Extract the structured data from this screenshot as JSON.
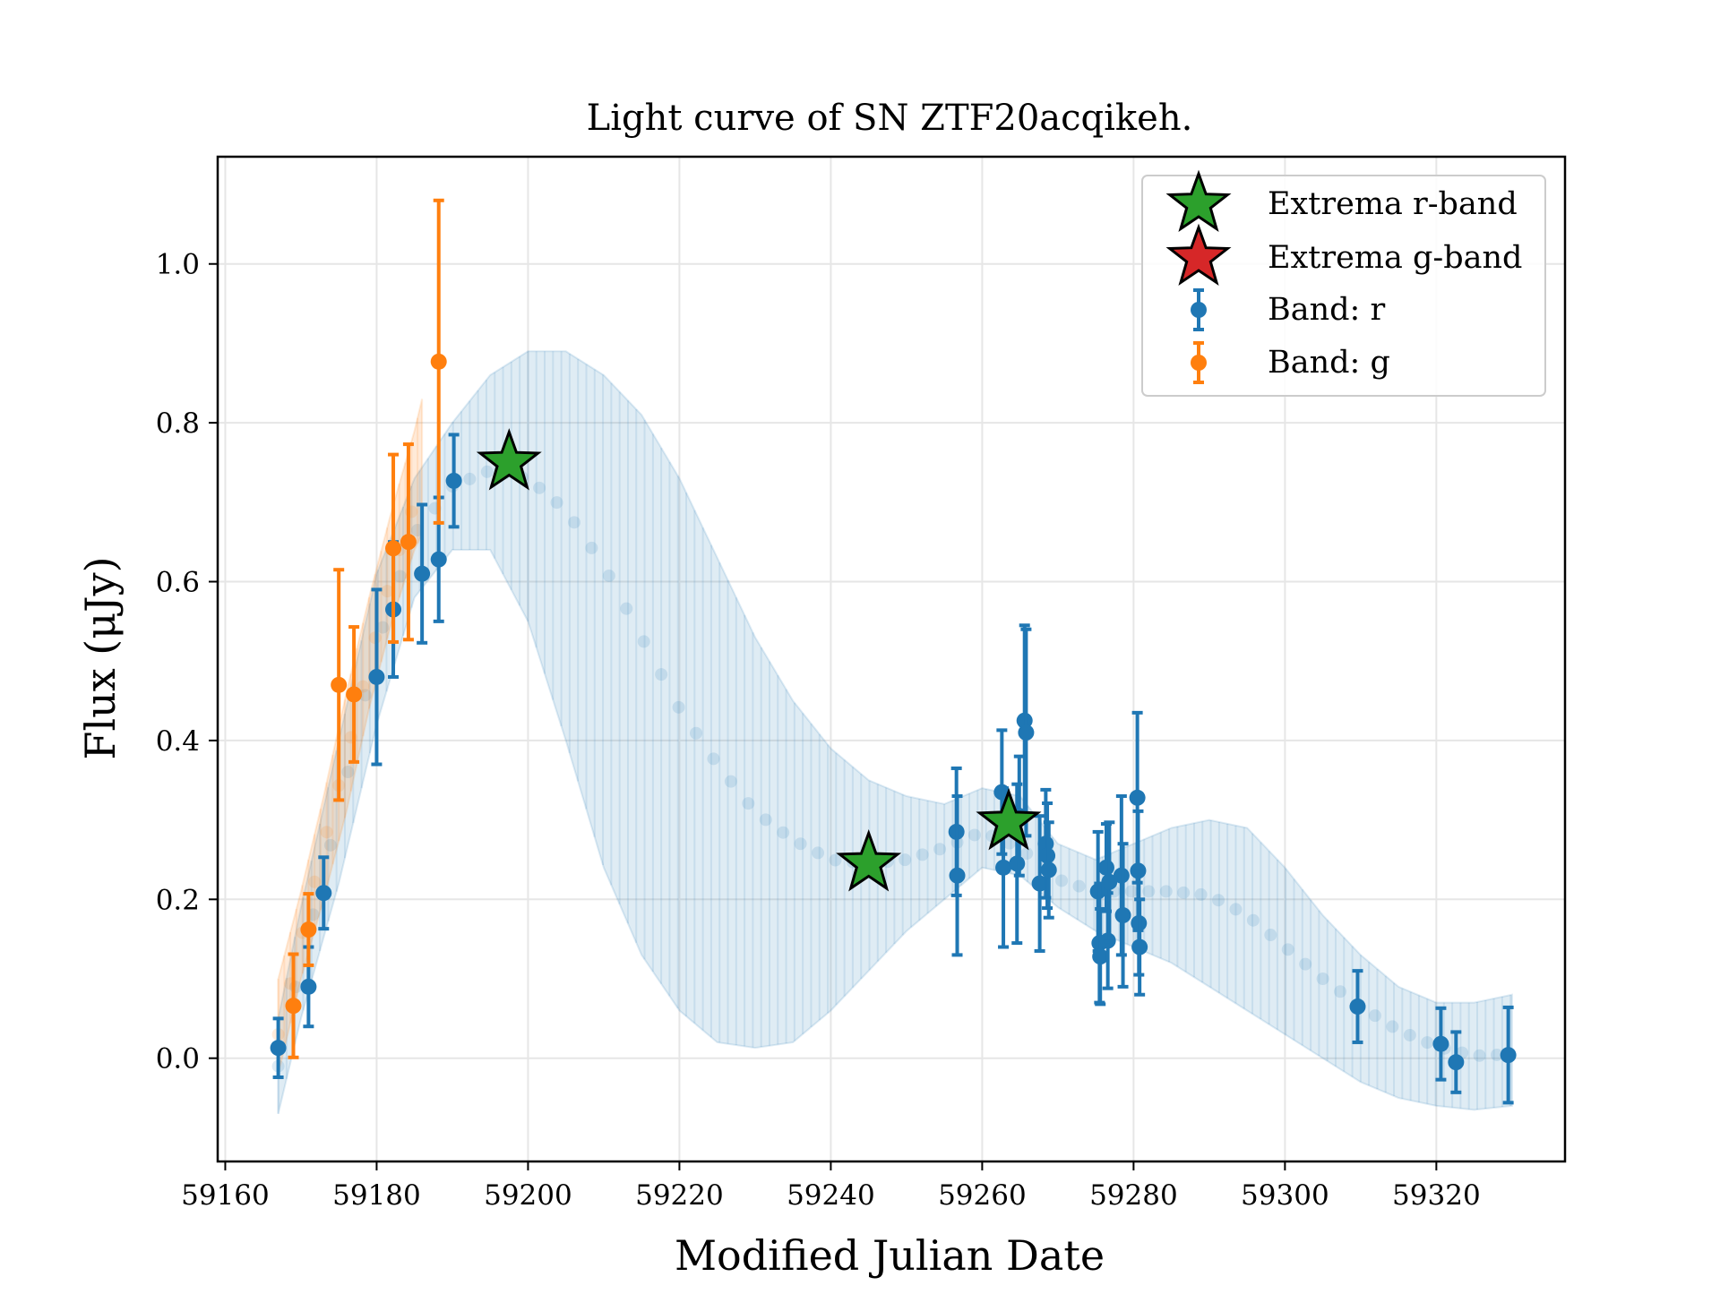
{
  "chart_data": {
    "type": "scatter",
    "title": "Light curve of SN ZTF20acqikeh.",
    "xlabel": "Modified Julian Date",
    "ylabel": "Flux (μJy)",
    "xlim": [
      59159,
      59337
    ],
    "ylim": [
      -0.13,
      1.135
    ],
    "xticks": [
      59160,
      59180,
      59200,
      59220,
      59240,
      59260,
      59280,
      59300,
      59320
    ],
    "xtick_labels": [
      "59160",
      "59180",
      "59200",
      "59220",
      "59240",
      "59260",
      "59280",
      "59300",
      "59320"
    ],
    "yticks": [
      0.0,
      0.2,
      0.4,
      0.6,
      0.8,
      1.0
    ],
    "ytick_labels": [
      "0.0",
      "0.2",
      "0.4",
      "0.6",
      "0.8",
      "1.0"
    ],
    "grid": true,
    "legend_position": "top-right",
    "legend": [
      {
        "label": "Extrema r-band",
        "marker": "star",
        "color": "#2ca02c"
      },
      {
        "label": "Extrema g-band",
        "marker": "star",
        "color": "#d62728"
      },
      {
        "label": "Band: r",
        "marker": "errorbar",
        "color": "#1f77b4"
      },
      {
        "label": "Band: g",
        "marker": "errorbar",
        "color": "#ff7f0e"
      }
    ],
    "colors": {
      "r": "#1f77b4",
      "g": "#ff7f0e",
      "extrema_r": "#2ca02c",
      "extrema_g": "#d62728"
    },
    "series": [
      {
        "name": "Band: r",
        "color": "#1f77b4",
        "points": [
          {
            "x": 59167.0,
            "y": 0.013,
            "err": 0.037
          },
          {
            "x": 59171.0,
            "y": 0.09,
            "err": 0.05
          },
          {
            "x": 59173.0,
            "y": 0.208,
            "err": 0.045
          },
          {
            "x": 59180.0,
            "y": 0.48,
            "err": 0.11
          },
          {
            "x": 59182.2,
            "y": 0.565,
            "err": 0.085
          },
          {
            "x": 59186.0,
            "y": 0.61,
            "err": 0.087
          },
          {
            "x": 59188.2,
            "y": 0.628,
            "err": 0.078
          },
          {
            "x": 59190.2,
            "y": 0.727,
            "err": 0.058
          },
          {
            "x": 59256.6,
            "y": 0.285,
            "err": 0.08
          },
          {
            "x": 59256.7,
            "y": 0.23,
            "err": 0.1
          },
          {
            "x": 59262.6,
            "y": 0.335,
            "err": 0.078
          },
          {
            "x": 59262.8,
            "y": 0.24,
            "err": 0.1
          },
          {
            "x": 59264.6,
            "y": 0.245,
            "err": 0.1
          },
          {
            "x": 59264.9,
            "y": 0.305,
            "err": 0.075
          },
          {
            "x": 59265.6,
            "y": 0.425,
            "err": 0.12
          },
          {
            "x": 59265.8,
            "y": 0.41,
            "err": 0.13
          },
          {
            "x": 59267.6,
            "y": 0.22,
            "err": 0.085
          },
          {
            "x": 59268.4,
            "y": 0.27,
            "err": 0.068
          },
          {
            "x": 59268.6,
            "y": 0.255,
            "err": 0.066
          },
          {
            "x": 59268.8,
            "y": 0.237,
            "err": 0.06
          },
          {
            "x": 59275.3,
            "y": 0.21,
            "err": 0.075
          },
          {
            "x": 59275.5,
            "y": 0.145,
            "err": 0.075
          },
          {
            "x": 59275.6,
            "y": 0.128,
            "err": 0.06
          },
          {
            "x": 59276.4,
            "y": 0.24,
            "err": 0.055
          },
          {
            "x": 59276.6,
            "y": 0.148,
            "err": 0.06
          },
          {
            "x": 59276.8,
            "y": 0.222,
            "err": 0.075
          },
          {
            "x": 59278.4,
            "y": 0.23,
            "err": 0.1
          },
          {
            "x": 59278.6,
            "y": 0.18,
            "err": 0.09
          },
          {
            "x": 59280.5,
            "y": 0.328,
            "err": 0.107
          },
          {
            "x": 59280.6,
            "y": 0.236,
            "err": 0.075
          },
          {
            "x": 59280.7,
            "y": 0.17,
            "err": 0.065
          },
          {
            "x": 59280.8,
            "y": 0.14,
            "err": 0.06
          },
          {
            "x": 59309.6,
            "y": 0.065,
            "err": 0.045
          },
          {
            "x": 59320.6,
            "y": 0.018,
            "err": 0.045
          },
          {
            "x": 59322.6,
            "y": -0.005,
            "err": 0.038
          },
          {
            "x": 59329.5,
            "y": 0.004,
            "err": 0.06
          }
        ]
      },
      {
        "name": "Band: g",
        "color": "#ff7f0e",
        "points": [
          {
            "x": 59169.0,
            "y": 0.066,
            "err": 0.065
          },
          {
            "x": 59171.0,
            "y": 0.162,
            "err": 0.045
          },
          {
            "x": 59175.0,
            "y": 0.47,
            "err": 0.145
          },
          {
            "x": 59177.0,
            "y": 0.458,
            "err": 0.085
          },
          {
            "x": 59182.2,
            "y": 0.642,
            "err": 0.118
          },
          {
            "x": 59184.2,
            "y": 0.65,
            "err": 0.123
          },
          {
            "x": 59188.2,
            "y": 0.877,
            "err": 0.203
          }
        ]
      }
    ],
    "fit_r": {
      "color": "#1f77b4",
      "x": [
        59167,
        59170,
        59175,
        59180,
        59185,
        59190,
        59195,
        59200,
        59205,
        59210,
        59215,
        59220,
        59225,
        59230,
        59235,
        59240,
        59245,
        59250,
        59255,
        59260,
        59265,
        59270,
        59275,
        59280,
        59285,
        59290,
        59295,
        59300,
        59305,
        59310,
        59315,
        59320,
        59325,
        59330
      ],
      "mean": [
        -0.01,
        0.12,
        0.31,
        0.52,
        0.66,
        0.72,
        0.74,
        0.73,
        0.69,
        0.62,
        0.53,
        0.44,
        0.37,
        0.31,
        0.275,
        0.25,
        0.245,
        0.25,
        0.265,
        0.285,
        0.265,
        0.225,
        0.21,
        0.21,
        0.21,
        0.205,
        0.18,
        0.14,
        0.1,
        0.065,
        0.035,
        0.015,
        0.003,
        0.005
      ],
      "lower": [
        -0.07,
        0.05,
        0.22,
        0.42,
        0.58,
        0.64,
        0.64,
        0.55,
        0.4,
        0.24,
        0.13,
        0.06,
        0.02,
        0.013,
        0.02,
        0.06,
        0.11,
        0.16,
        0.2,
        0.24,
        0.23,
        0.19,
        0.16,
        0.14,
        0.12,
        0.09,
        0.06,
        0.03,
        0.0,
        -0.03,
        -0.05,
        -0.06,
        -0.065,
        -0.06
      ],
      "upper": [
        0.05,
        0.19,
        0.4,
        0.61,
        0.73,
        0.8,
        0.86,
        0.89,
        0.89,
        0.86,
        0.81,
        0.73,
        0.63,
        0.53,
        0.45,
        0.39,
        0.35,
        0.33,
        0.32,
        0.34,
        0.33,
        0.27,
        0.25,
        0.27,
        0.29,
        0.3,
        0.29,
        0.24,
        0.18,
        0.13,
        0.09,
        0.07,
        0.07,
        0.08
      ]
    },
    "fit_g": {
      "color": "#ff7f0e",
      "x": [
        59167,
        59170,
        59173,
        59176,
        59179,
        59182,
        59185,
        59186
      ],
      "mean": [
        0.03,
        0.15,
        0.27,
        0.38,
        0.5,
        0.61,
        0.7,
        0.72
      ],
      "lower": [
        -0.02,
        0.1,
        0.2,
        0.31,
        0.44,
        0.55,
        0.64,
        0.66
      ],
      "upper": [
        0.1,
        0.21,
        0.33,
        0.46,
        0.58,
        0.69,
        0.79,
        0.83
      ]
    },
    "extrema_r": [
      {
        "x": 59197.5,
        "y": 0.75
      },
      {
        "x": 59245.0,
        "y": 0.245
      },
      {
        "x": 59263.5,
        "y": 0.297
      }
    ]
  }
}
